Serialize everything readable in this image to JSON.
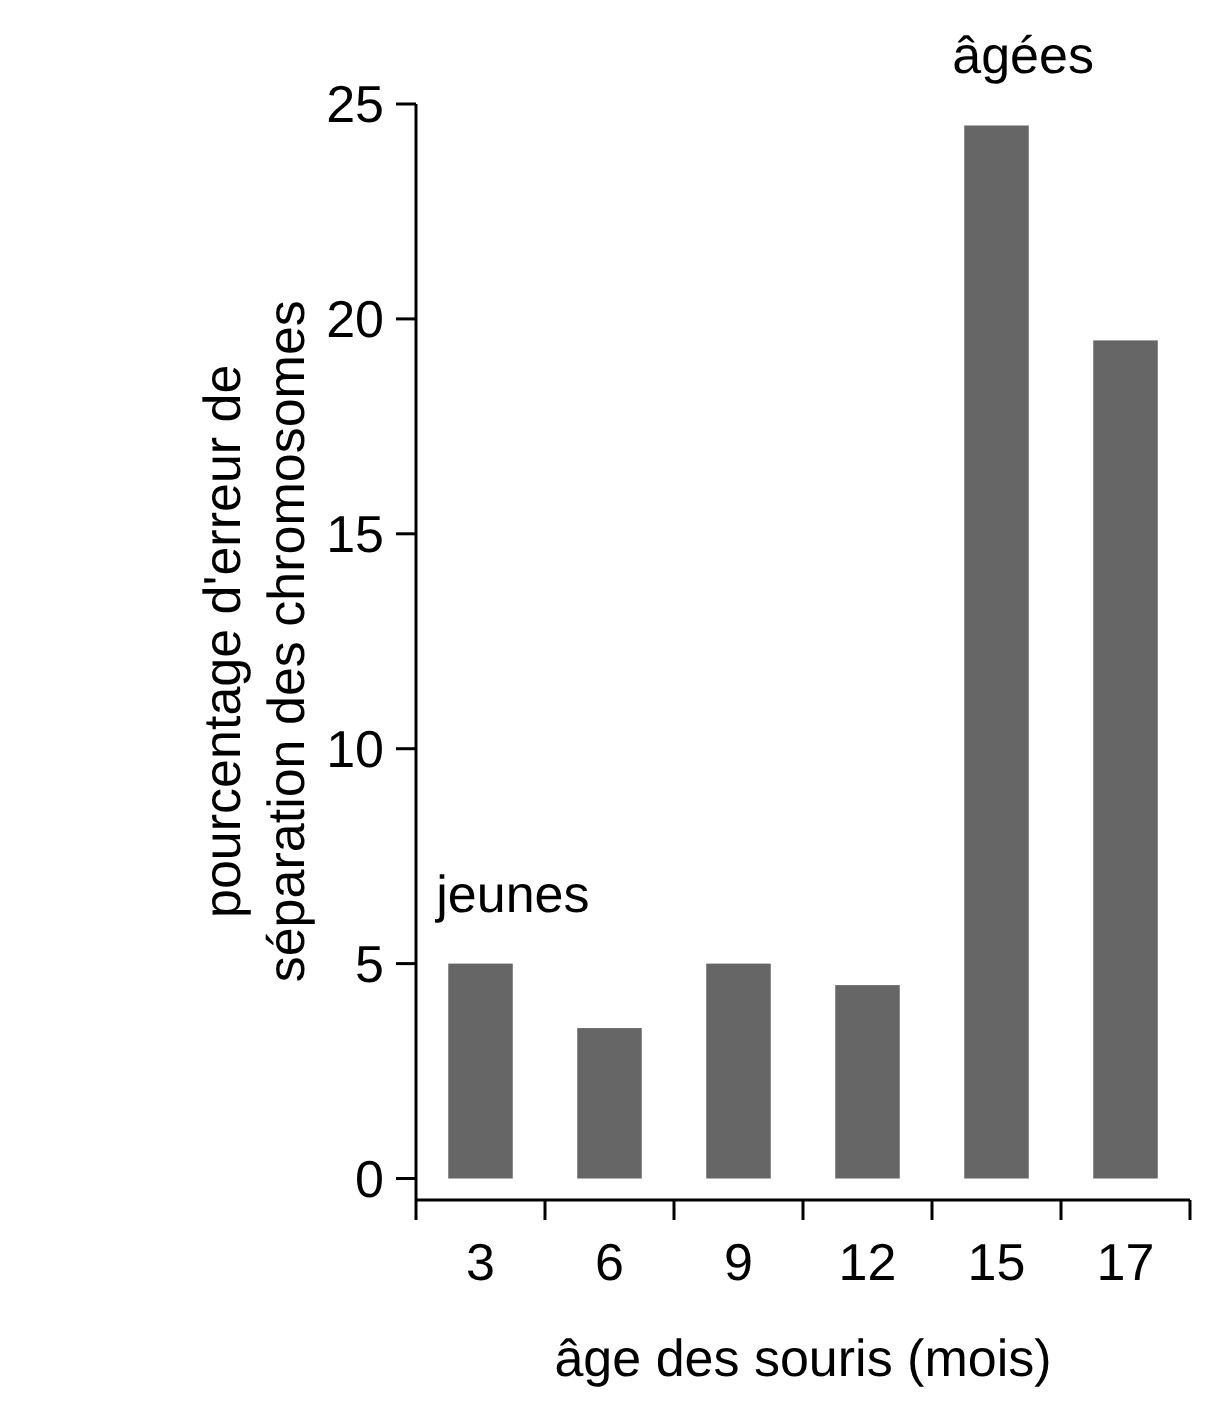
{
  "chart_data": {
    "type": "bar",
    "xlabel": "âge des souris (mois)",
    "ylabel": "pourcentage d'erreur de\nséparation des chromosomes",
    "categories": [
      "3",
      "6",
      "9",
      "12",
      "15",
      "17"
    ],
    "values": [
      5,
      3.5,
      5,
      4.5,
      24.5,
      19.5
    ],
    "color": "#666666",
    "ylim": [
      -0.5,
      25
    ],
    "yticks": [
      0,
      5,
      10,
      15,
      20,
      25
    ],
    "grid": false,
    "annotations": [
      {
        "text": "jeunes",
        "x": "3",
        "y": 5
      },
      {
        "text": "âgées",
        "x": "15",
        "y": 24.5
      }
    ]
  }
}
